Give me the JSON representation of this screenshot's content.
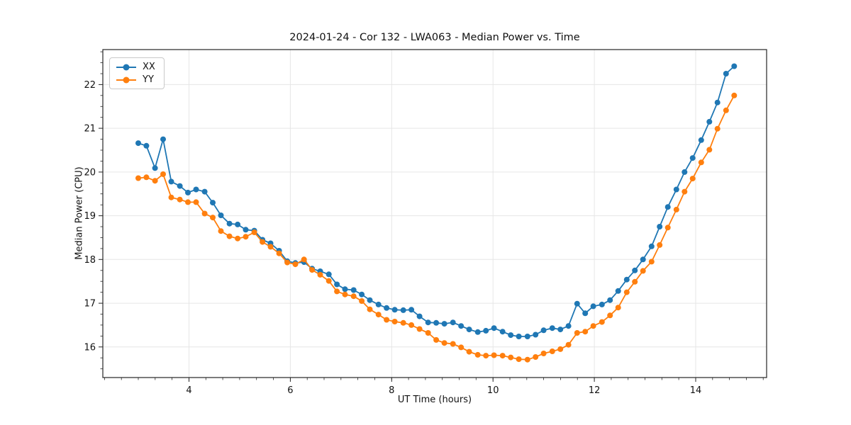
{
  "title": "2024-01-24 - Cor 132 - LWA063 - Median Power vs. Time",
  "legend": {
    "items": [
      {
        "label": "XX",
        "color": "#1f77b4"
      },
      {
        "label": "YY",
        "color": "#ff7f0e"
      }
    ]
  },
  "chart_data": {
    "type": "line",
    "title": "2024-01-24 - Cor 132 - LWA063 - Median Power vs. Time",
    "xlabel": "UT Time (hours)",
    "ylabel": "Median Power (CPU)",
    "xlim": [
      2.3,
      15.4
    ],
    "ylim": [
      15.3,
      22.8
    ],
    "xticks": [
      4,
      6,
      8,
      10,
      12,
      14
    ],
    "yticks": [
      16,
      17,
      18,
      19,
      20,
      21,
      22
    ],
    "minor_x_step": 0.33333,
    "minor_y_step": 0.25,
    "grid": true,
    "grid_color": "#e6e6e6",
    "legend_position": "upper left",
    "marker": "circle",
    "marker_radius": 4,
    "line_width": 1.8,
    "x": [
      3.0,
      3.16,
      3.33,
      3.49,
      3.65,
      3.82,
      3.98,
      4.14,
      4.31,
      4.47,
      4.63,
      4.8,
      4.96,
      5.12,
      5.29,
      5.45,
      5.61,
      5.78,
      5.94,
      6.1,
      6.27,
      6.43,
      6.59,
      6.76,
      6.92,
      7.08,
      7.25,
      7.41,
      7.57,
      7.74,
      7.9,
      8.06,
      8.23,
      8.39,
      8.55,
      8.72,
      8.88,
      9.04,
      9.21,
      9.37,
      9.53,
      9.7,
      9.86,
      10.02,
      10.19,
      10.35,
      10.51,
      10.68,
      10.84,
      11.0,
      11.17,
      11.33,
      11.49,
      11.66,
      11.82,
      11.98,
      12.15,
      12.31,
      12.47,
      12.64,
      12.8,
      12.96,
      13.13,
      13.29,
      13.45,
      13.62,
      13.78,
      13.94,
      14.11,
      14.27,
      14.43,
      14.6,
      14.76
    ],
    "series": [
      {
        "name": "XX",
        "color": "#1f77b4",
        "values": [
          20.66,
          20.6,
          20.09,
          20.75,
          19.78,
          19.68,
          19.53,
          19.6,
          19.55,
          19.3,
          19.01,
          18.82,
          18.8,
          18.68,
          18.66,
          18.45,
          18.37,
          18.2,
          17.96,
          17.92,
          17.94,
          17.79,
          17.73,
          17.66,
          17.43,
          17.32,
          17.3,
          17.2,
          17.07,
          16.97,
          16.89,
          16.85,
          16.84,
          16.85,
          16.7,
          16.56,
          16.55,
          16.53,
          16.56,
          16.48,
          16.4,
          16.34,
          16.37,
          16.43,
          16.35,
          16.27,
          16.24,
          16.24,
          16.28,
          16.38,
          16.43,
          16.4,
          16.48,
          16.99,
          16.77,
          16.93,
          16.97,
          17.07,
          17.28,
          17.54,
          17.75,
          18.0,
          18.3,
          18.75,
          19.2,
          19.6,
          20.0,
          20.32,
          20.73,
          21.15,
          21.59,
          22.25,
          22.42
        ]
      },
      {
        "name": "YY",
        "color": "#ff7f0e",
        "values": [
          19.86,
          19.88,
          19.8,
          19.95,
          19.42,
          19.37,
          19.31,
          19.31,
          19.05,
          18.96,
          18.65,
          18.53,
          18.48,
          18.52,
          18.62,
          18.4,
          18.29,
          18.14,
          17.93,
          17.89,
          18.0,
          17.76,
          17.65,
          17.51,
          17.27,
          17.2,
          17.16,
          17.05,
          16.86,
          16.74,
          16.62,
          16.58,
          16.55,
          16.5,
          16.41,
          16.32,
          16.16,
          16.09,
          16.07,
          15.99,
          15.89,
          15.82,
          15.8,
          15.81,
          15.8,
          15.76,
          15.72,
          15.71,
          15.77,
          15.85,
          15.9,
          15.95,
          16.05,
          16.32,
          16.35,
          16.48,
          16.57,
          16.72,
          16.9,
          17.25,
          17.49,
          17.74,
          17.95,
          18.33,
          18.73,
          19.14,
          19.55,
          19.85,
          20.22,
          20.51,
          20.99,
          21.41,
          21.75
        ]
      }
    ]
  }
}
